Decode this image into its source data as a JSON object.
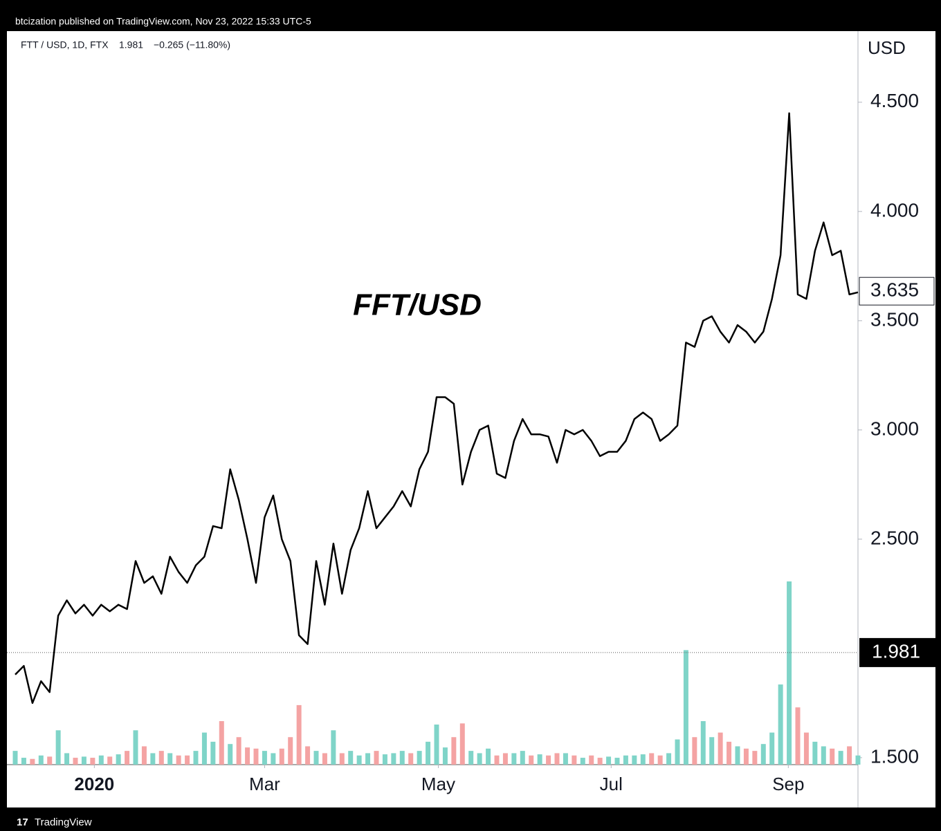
{
  "chart_data": {
    "type": "line",
    "publisher": "btcization published on TradingView.com, Nov 23, 2022 15:33 UTC-5",
    "symbol": "FTT / USD, 1D, FTX",
    "quote": "1.981",
    "change": "−0.265 (−11.80%)",
    "axis_unit": "USD",
    "annotation": "FFT/USD",
    "footer": "TradingView",
    "color": "#000000",
    "xlim": [
      0,
      98
    ],
    "xticks": [
      {
        "value": 9.2,
        "label": "2020"
      },
      {
        "value": 29,
        "label": "Mar"
      },
      {
        "value": 49.2,
        "label": "May"
      },
      {
        "value": 69.3,
        "label": "Jul"
      },
      {
        "value": 89.9,
        "label": "Sep"
      }
    ],
    "ylim": [
      1.468,
      4.816
    ],
    "yticks": [
      {
        "value": 1.5,
        "label": "1.500"
      },
      {
        "value": 2.5,
        "label": "2.500"
      },
      {
        "value": 3.0,
        "label": "3.000"
      },
      {
        "value": 3.5,
        "label": "3.500"
      },
      {
        "value": 4.0,
        "label": "4.000"
      },
      {
        "value": 4.5,
        "label": "4.500"
      }
    ],
    "last_price": {
      "value": 3.635,
      "label": "3.635"
    },
    "current_price": {
      "value": 1.981,
      "label": "1.981"
    },
    "values": [
      1.88,
      1.92,
      1.75,
      1.85,
      1.8,
      2.15,
      2.22,
      2.16,
      2.2,
      2.15,
      2.2,
      2.17,
      2.2,
      2.18,
      2.4,
      2.3,
      2.33,
      2.25,
      2.42,
      2.35,
      2.3,
      2.38,
      2.42,
      2.56,
      2.55,
      2.82,
      2.68,
      2.5,
      2.3,
      2.6,
      2.7,
      2.5,
      2.4,
      2.06,
      2.02,
      2.4,
      2.2,
      2.48,
      2.25,
      2.45,
      2.55,
      2.72,
      2.55,
      2.6,
      2.65,
      2.72,
      2.65,
      2.82,
      2.9,
      3.15,
      3.15,
      3.12,
      2.75,
      2.9,
      3.0,
      3.02,
      2.8,
      2.78,
      2.95,
      3.05,
      2.98,
      2.98,
      2.97,
      2.85,
      3.0,
      2.98,
      3.0,
      2.95,
      2.88,
      2.9,
      2.9,
      2.95,
      3.05,
      3.08,
      3.05,
      2.95,
      2.98,
      3.02,
      3.4,
      3.38,
      3.5,
      3.52,
      3.45,
      3.4,
      3.48,
      3.45,
      3.4,
      3.45,
      3.6,
      3.8,
      4.45,
      3.62,
      3.6,
      3.82,
      3.95,
      3.8,
      3.82,
      3.62,
      3.63
    ],
    "volume": {
      "up_color": "#7fd4c8",
      "down_color": "#f4a3a3",
      "values": [
        12,
        6,
        5,
        8,
        7,
        30,
        10,
        6,
        7,
        6,
        8,
        7,
        9,
        12,
        30,
        16,
        10,
        12,
        10,
        8,
        8,
        12,
        28,
        20,
        38,
        18,
        24,
        15,
        14,
        12,
        10,
        14,
        24,
        52,
        16,
        12,
        10,
        30,
        10,
        12,
        8,
        10,
        12,
        9,
        10,
        12,
        10,
        12,
        20,
        35,
        15,
        24,
        36,
        12,
        10,
        14,
        8,
        10,
        10,
        12,
        8,
        9,
        8,
        10,
        10,
        8,
        6,
        8,
        6,
        7,
        6,
        8,
        8,
        9,
        10,
        8,
        10,
        22,
        100,
        24,
        38,
        24,
        28,
        20,
        16,
        14,
        12,
        18,
        28,
        70,
        160,
        50,
        28,
        20,
        16,
        14,
        12,
        16,
        8
      ]
    }
  }
}
